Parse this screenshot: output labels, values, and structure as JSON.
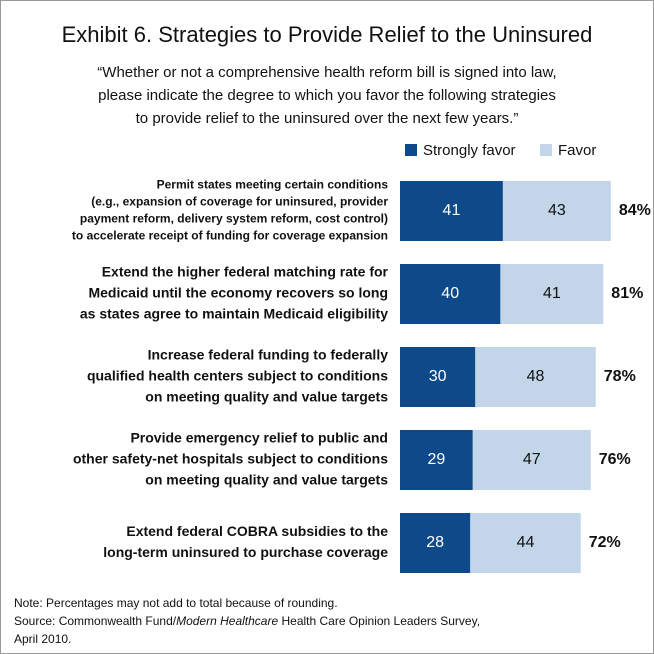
{
  "chart_data": {
    "type": "stacked_bar_horizontal",
    "title": "Exhibit 6. Strategies to Provide Relief to the Uninsured",
    "subtitle": [
      "“Whether or not a comprehensive health reform bill is signed into law,",
      "please indicate the degree to which you favor the following strategies",
      "to provide relief to the uninsured over the next few years.”"
    ],
    "categories": [
      [
        "Permit states meeting certain conditions",
        "(e.g., expansion of coverage for uninsured, provider",
        "payment reform, delivery system reform, cost control)",
        "to accelerate receipt of funding for coverage expansion"
      ],
      [
        "Extend the higher federal matching rate for",
        "Medicaid until the economy recovers so long",
        "as states agree to maintain Medicaid eligibility"
      ],
      [
        "Increase federal funding to federally",
        "qualified health centers subject to conditions",
        "on meeting quality and value targets"
      ],
      [
        "Provide emergency relief to public and",
        "other safety-net hospitals subject to conditions",
        "on meeting quality and value targets"
      ],
      [
        "Extend federal COBRA subsidies to the",
        "long-term uninsured to purchase coverage"
      ]
    ],
    "series": [
      {
        "name": "Strongly favor",
        "color": "#0e4a8a",
        "values": [
          41,
          40,
          30,
          29,
          28
        ]
      },
      {
        "name": "Favor",
        "color": "#c3d5e8",
        "values": [
          43,
          41,
          48,
          47,
          44
        ]
      }
    ],
    "totals": [
      84,
      81,
      78,
      76,
      72
    ],
    "total_labels": [
      "84%",
      "81%",
      "78%",
      "76%",
      "72%"
    ],
    "note": "Note: Percentages may not add to total because of rounding.",
    "source": [
      "Source: Commonwealth Fund/",
      "Modern Healthcare",
      " Health Care Opinion Leaders Survey,",
      "April 2010."
    ]
  }
}
